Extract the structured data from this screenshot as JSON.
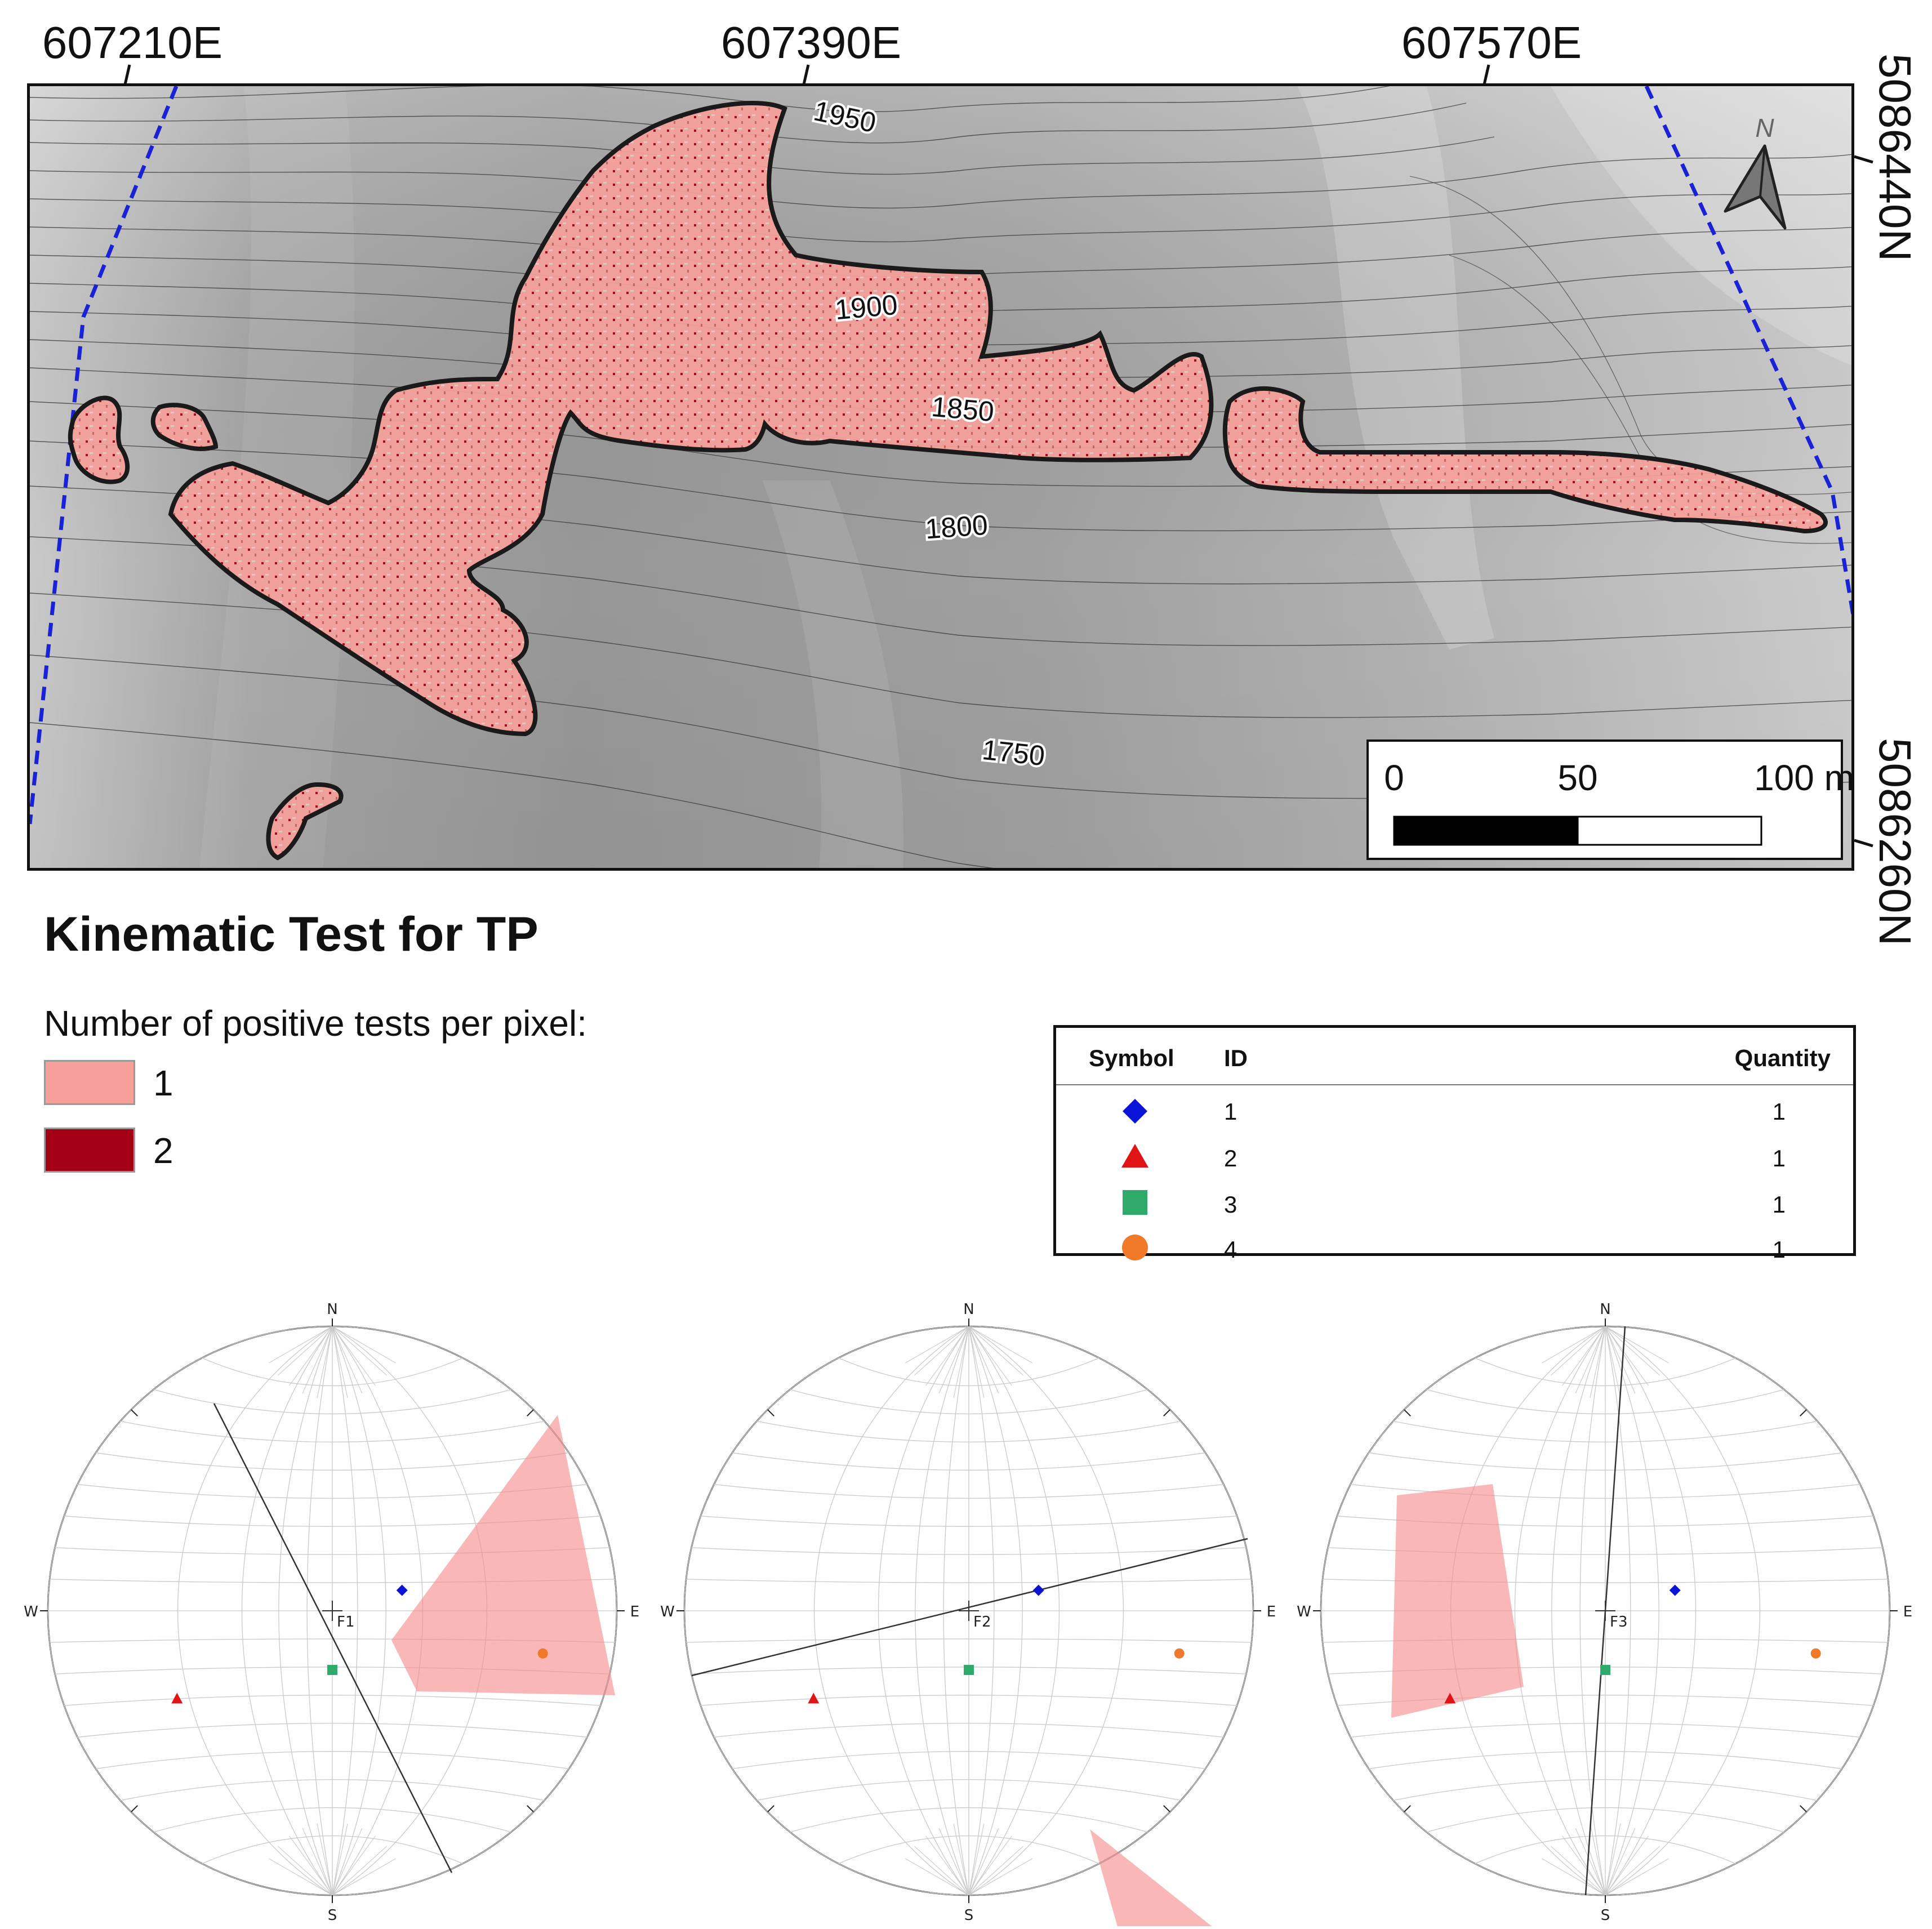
{
  "map": {
    "easting_labels": [
      "607210E",
      "607390E",
      "607570E"
    ],
    "northing_labels": [
      "5086440N",
      "5086260N"
    ],
    "contour_labels": [
      "1950",
      "1900",
      "1850",
      "1800",
      "1750"
    ],
    "north_arrow_label": "N",
    "scale_bar": {
      "labels": [
        "0",
        "50",
        "100 m"
      ]
    }
  },
  "title": "Kinematic Test for TP",
  "legend": {
    "heading": "Number of positive tests per pixel:",
    "items": [
      {
        "label": "1",
        "color": "#f7a09a"
      },
      {
        "label": "2",
        "color": "#a30015"
      }
    ]
  },
  "symbol_table": {
    "headers": {
      "symbol": "Symbol",
      "id": "ID",
      "quantity": "Quantity"
    },
    "rows": [
      {
        "symbol": "diamond",
        "color": "#0a14d6",
        "id": "1",
        "quantity": "1"
      },
      {
        "symbol": "triangle",
        "color": "#e01414",
        "id": "2",
        "quantity": "1"
      },
      {
        "symbol": "square",
        "color": "#2faa6a",
        "id": "3",
        "quantity": "1"
      },
      {
        "symbol": "circle",
        "color": "#f07a2a",
        "id": "4",
        "quantity": "1"
      }
    ]
  },
  "stereonets": [
    {
      "plane_label": "F1",
      "directions": {
        "n": "N",
        "s": "S",
        "e": "E",
        "w": "W"
      }
    },
    {
      "plane_label": "F2",
      "directions": {
        "n": "N",
        "s": "S",
        "e": "E",
        "w": "W"
      }
    },
    {
      "plane_label": "F3",
      "directions": {
        "n": "N",
        "s": "S",
        "e": "E",
        "w": "W"
      }
    }
  ]
}
